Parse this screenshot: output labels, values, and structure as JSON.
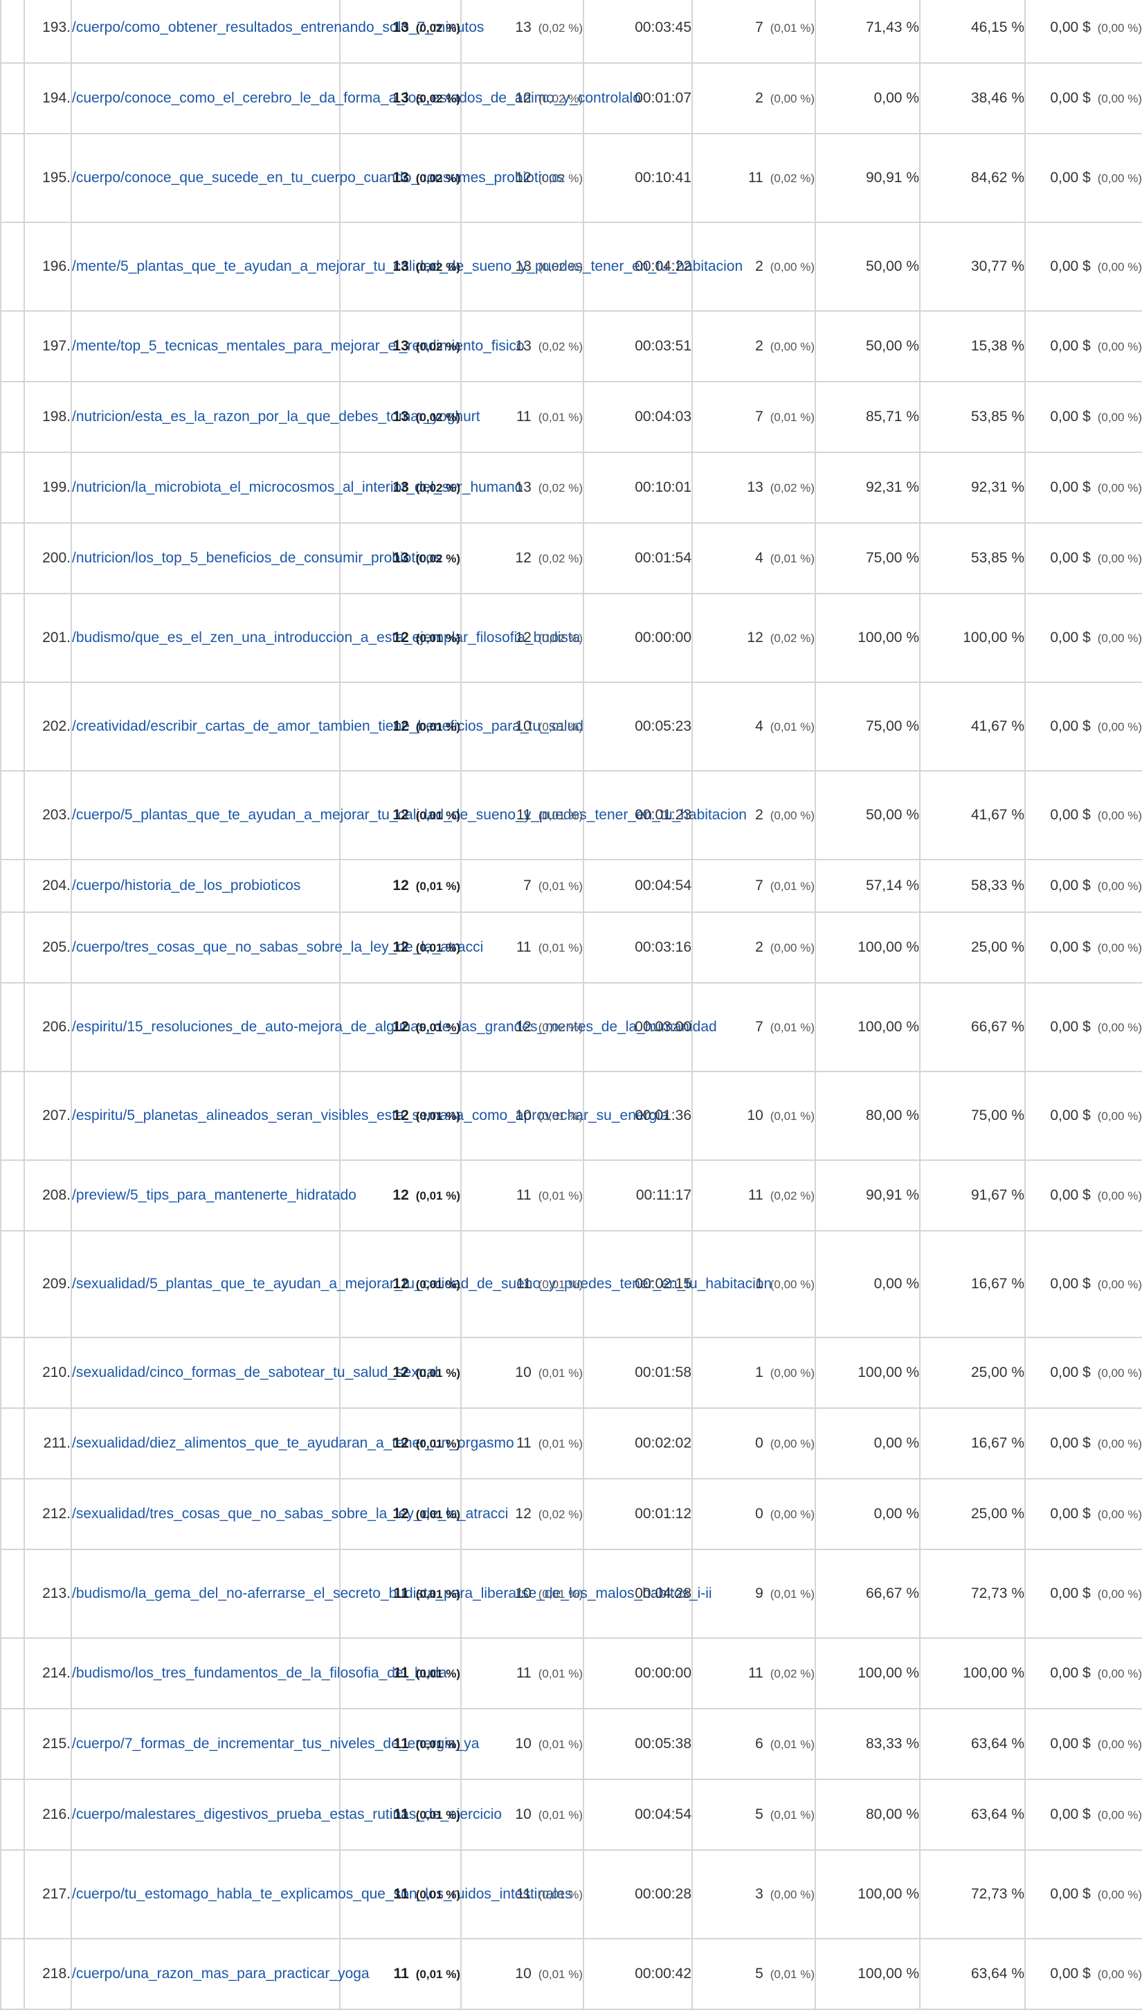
{
  "rows": [
    {
      "idx": "193.",
      "page": "/cuerpo/como_obtener_resultados_entrenando_solo_7_minutos",
      "views": "13",
      "views_pct": "(0,02 %)",
      "unique": "13",
      "unique_pct": "(0,02 %)",
      "time": "00:03:45",
      "entrances": "7",
      "entrances_pct": "(0,01 %)",
      "bounce": "71,43 %",
      "exit": "46,15 %",
      "value": "0,00 $",
      "value_pct": "(0,00 %)"
    },
    {
      "idx": "194.",
      "page": "/cuerpo/conoce_como_el_cerebro_le_da_forma_a_los_estados_de_animo_y_controlalo",
      "views": "13",
      "views_pct": "(0,02 %)",
      "unique": "12",
      "unique_pct": "(0,02 %)",
      "time": "00:01:07",
      "entrances": "2",
      "entrances_pct": "(0,00 %)",
      "bounce": "0,00 %",
      "exit": "38,46 %",
      "value": "0,00 $",
      "value_pct": "(0,00 %)"
    },
    {
      "idx": "195.",
      "page": "/cuerpo/conoce_que_sucede_en_tu_cuerpo_cuando_consumes_probioticos",
      "views": "13",
      "views_pct": "(0,02 %)",
      "unique": "12",
      "unique_pct": "(0,02 %)",
      "time": "00:10:41",
      "entrances": "11",
      "entrances_pct": "(0,02 %)",
      "bounce": "90,91 %",
      "exit": "84,62 %",
      "value": "0,00 $",
      "value_pct": "(0,00 %)"
    },
    {
      "idx": "196.",
      "page": "/mente/5_plantas_que_te_ayudan_a_mejorar_tu_calidad_de_sueno_y_puedes_tener_en_tu_habitacion",
      "views": "13",
      "views_pct": "(0,02 %)",
      "unique": "13",
      "unique_pct": "(0,02 %)",
      "time": "00:04:22",
      "entrances": "2",
      "entrances_pct": "(0,00 %)",
      "bounce": "50,00 %",
      "exit": "30,77 %",
      "value": "0,00 $",
      "value_pct": "(0,00 %)"
    },
    {
      "idx": "197.",
      "page": "/mente/top_5_tecnicas_mentales_para_mejorar_el_rendimiento_fisico",
      "views": "13",
      "views_pct": "(0,02 %)",
      "unique": "13",
      "unique_pct": "(0,02 %)",
      "time": "00:03:51",
      "entrances": "2",
      "entrances_pct": "(0,00 %)",
      "bounce": "50,00 %",
      "exit": "15,38 %",
      "value": "0,00 $",
      "value_pct": "(0,00 %)"
    },
    {
      "idx": "198.",
      "page": "/nutricion/esta_es_la_razon_por_la_que_debes_tomar_yoghurt",
      "views": "13",
      "views_pct": "(0,02 %)",
      "unique": "11",
      "unique_pct": "(0,01 %)",
      "time": "00:04:03",
      "entrances": "7",
      "entrances_pct": "(0,01 %)",
      "bounce": "85,71 %",
      "exit": "53,85 %",
      "value": "0,00 $",
      "value_pct": "(0,00 %)"
    },
    {
      "idx": "199.",
      "page": "/nutricion/la_microbiota_el_microcosmos_al_interior_del_ser_humano",
      "views": "13",
      "views_pct": "(0,02 %)",
      "unique": "13",
      "unique_pct": "(0,02 %)",
      "time": "00:10:01",
      "entrances": "13",
      "entrances_pct": "(0,02 %)",
      "bounce": "92,31 %",
      "exit": "92,31 %",
      "value": "0,00 $",
      "value_pct": "(0,00 %)"
    },
    {
      "idx": "200.",
      "page": "/nutricion/los_top_5_beneficios_de_consumir_probioticos",
      "views": "13",
      "views_pct": "(0,02 %)",
      "unique": "12",
      "unique_pct": "(0,02 %)",
      "time": "00:01:54",
      "entrances": "4",
      "entrances_pct": "(0,01 %)",
      "bounce": "75,00 %",
      "exit": "53,85 %",
      "value": "0,00 $",
      "value_pct": "(0,00 %)"
    },
    {
      "idx": "201.",
      "page": "/budismo/que_es_el_zen_una_introduccion_a_esta_ejemplar_filosofia_budista",
      "views": "12",
      "views_pct": "(0,01 %)",
      "unique": "12",
      "unique_pct": "(0,02 %)",
      "time": "00:00:00",
      "entrances": "12",
      "entrances_pct": "(0,02 %)",
      "bounce": "100,00 %",
      "exit": "100,00 %",
      "value": "0,00 $",
      "value_pct": "(0,00 %)"
    },
    {
      "idx": "202.",
      "page": "/creatividad/escribir_cartas_de_amor_tambien_tiene_beneficios_para_tu_salud",
      "views": "12",
      "views_pct": "(0,01 %)",
      "unique": "10",
      "unique_pct": "(0,01 %)",
      "time": "00:05:23",
      "entrances": "4",
      "entrances_pct": "(0,01 %)",
      "bounce": "75,00 %",
      "exit": "41,67 %",
      "value": "0,00 $",
      "value_pct": "(0,00 %)"
    },
    {
      "idx": "203.",
      "page": "/cuerpo/5_plantas_que_te_ayudan_a_mejorar_tu_calidad_de_sueno_y_puedes_tener_en_tu_habitacion",
      "views": "12",
      "views_pct": "(0,01 %)",
      "unique": "11",
      "unique_pct": "(0,01 %)",
      "time": "00:01:23",
      "entrances": "2",
      "entrances_pct": "(0,00 %)",
      "bounce": "50,00 %",
      "exit": "41,67 %",
      "value": "0,00 $",
      "value_pct": "(0,00 %)"
    },
    {
      "idx": "204.",
      "page": "/cuerpo/historia_de_los_probioticos",
      "views": "12",
      "views_pct": "(0,01 %)",
      "unique": "7",
      "unique_pct": "(0,01 %)",
      "time": "00:04:54",
      "entrances": "7",
      "entrances_pct": "(0,01 %)",
      "bounce": "57,14 %",
      "exit": "58,33 %",
      "value": "0,00 $",
      "value_pct": "(0,00 %)"
    },
    {
      "idx": "205.",
      "page": "/cuerpo/tres_cosas_que_no_sabas_sobre_la_ley_de_la_atracci",
      "views": "12",
      "views_pct": "(0,01 %)",
      "unique": "11",
      "unique_pct": "(0,01 %)",
      "time": "00:03:16",
      "entrances": "2",
      "entrances_pct": "(0,00 %)",
      "bounce": "100,00 %",
      "exit": "25,00 %",
      "value": "0,00 $",
      "value_pct": "(0,00 %)"
    },
    {
      "idx": "206.",
      "page": "/espiritu/15_resoluciones_de_auto-mejora_de_algunas_de_las_grandes_mentes_de_la_humanidad",
      "views": "12",
      "views_pct": "(0,01 %)",
      "unique": "12",
      "unique_pct": "(0,02 %)",
      "time": "00:03:00",
      "entrances": "7",
      "entrances_pct": "(0,01 %)",
      "bounce": "100,00 %",
      "exit": "66,67 %",
      "value": "0,00 $",
      "value_pct": "(0,00 %)"
    },
    {
      "idx": "207.",
      "page": "/espiritu/5_planetas_alineados_seran_visibles_esta_semana_como_aprovechar_su_energia",
      "views": "12",
      "views_pct": "(0,01 %)",
      "unique": "10",
      "unique_pct": "(0,01 %)",
      "time": "00:01:36",
      "entrances": "10",
      "entrances_pct": "(0,01 %)",
      "bounce": "80,00 %",
      "exit": "75,00 %",
      "value": "0,00 $",
      "value_pct": "(0,00 %)"
    },
    {
      "idx": "208.",
      "page": "/preview/5_tips_para_mantenerte_hidratado",
      "views": "12",
      "views_pct": "(0,01 %)",
      "unique": "11",
      "unique_pct": "(0,01 %)",
      "time": "00:11:17",
      "entrances": "11",
      "entrances_pct": "(0,02 %)",
      "bounce": "90,91 %",
      "exit": "91,67 %",
      "value": "0,00 $",
      "value_pct": "(0,00 %)"
    },
    {
      "idx": "209.",
      "page": "/sexualidad/5_plantas_que_te_ayudan_a_mejorar_tu_calidad_de_sueno_y_puedes_tener_en_tu_habitacion",
      "views": "12",
      "views_pct": "(0,01 %)",
      "unique": "11",
      "unique_pct": "(0,01 %)",
      "time": "00:02:15",
      "entrances": "1",
      "entrances_pct": "(0,00 %)",
      "bounce": "0,00 %",
      "exit": "16,67 %",
      "value": "0,00 $",
      "value_pct": "(0,00 %)"
    },
    {
      "idx": "210.",
      "page": "/sexualidad/cinco_formas_de_sabotear_tu_salud_sexual",
      "views": "12",
      "views_pct": "(0,01 %)",
      "unique": "10",
      "unique_pct": "(0,01 %)",
      "time": "00:01:58",
      "entrances": "1",
      "entrances_pct": "(0,00 %)",
      "bounce": "100,00 %",
      "exit": "25,00 %",
      "value": "0,00 $",
      "value_pct": "(0,00 %)"
    },
    {
      "idx": "211.",
      "page": "/sexualidad/diez_alimentos_que_te_ayudaran_a_tener_un_orgasmo",
      "views": "12",
      "views_pct": "(0,01 %)",
      "unique": "11",
      "unique_pct": "(0,01 %)",
      "time": "00:02:02",
      "entrances": "0",
      "entrances_pct": "(0,00 %)",
      "bounce": "0,00 %",
      "exit": "16,67 %",
      "value": "0,00 $",
      "value_pct": "(0,00 %)"
    },
    {
      "idx": "212.",
      "page": "/sexualidad/tres_cosas_que_no_sabas_sobre_la_ley_de_la_atracci",
      "views": "12",
      "views_pct": "(0,01 %)",
      "unique": "12",
      "unique_pct": "(0,02 %)",
      "time": "00:01:12",
      "entrances": "0",
      "entrances_pct": "(0,00 %)",
      "bounce": "0,00 %",
      "exit": "25,00 %",
      "value": "0,00 $",
      "value_pct": "(0,00 %)"
    },
    {
      "idx": "213.",
      "page": "/budismo/la_gema_del_no-aferrarse_el_secreto_budista_para_liberarse_de_los_malos_habitos_i-ii",
      "views": "11",
      "views_pct": "(0,01 %)",
      "unique": "10",
      "unique_pct": "(0,01 %)",
      "time": "00:04:28",
      "entrances": "9",
      "entrances_pct": "(0,01 %)",
      "bounce": "66,67 %",
      "exit": "72,73 %",
      "value": "0,00 $",
      "value_pct": "(0,00 %)"
    },
    {
      "idx": "214.",
      "page": "/budismo/los_tres_fundamentos_de_la_filosofia_del_buda",
      "views": "11",
      "views_pct": "(0,01 %)",
      "unique": "11",
      "unique_pct": "(0,01 %)",
      "time": "00:00:00",
      "entrances": "11",
      "entrances_pct": "(0,02 %)",
      "bounce": "100,00 %",
      "exit": "100,00 %",
      "value": "0,00 $",
      "value_pct": "(0,00 %)"
    },
    {
      "idx": "215.",
      "page": "/cuerpo/7_formas_de_incrementar_tus_niveles_de_energia_ya",
      "views": "11",
      "views_pct": "(0,01 %)",
      "unique": "10",
      "unique_pct": "(0,01 %)",
      "time": "00:05:38",
      "entrances": "6",
      "entrances_pct": "(0,01 %)",
      "bounce": "83,33 %",
      "exit": "63,64 %",
      "value": "0,00 $",
      "value_pct": "(0,00 %)"
    },
    {
      "idx": "216.",
      "page": "/cuerpo/malestares_digestivos_prueba_estas_rutinas_de_ejercicio",
      "views": "11",
      "views_pct": "(0,01 %)",
      "unique": "10",
      "unique_pct": "(0,01 %)",
      "time": "00:04:54",
      "entrances": "5",
      "entrances_pct": "(0,01 %)",
      "bounce": "80,00 %",
      "exit": "63,64 %",
      "value": "0,00 $",
      "value_pct": "(0,00 %)"
    },
    {
      "idx": "217.",
      "page": "/cuerpo/tu_estomago_habla_te_explicamos_que_son_los_ruidos_intestinales",
      "views": "11",
      "views_pct": "(0,01 %)",
      "unique": "11",
      "unique_pct": "(0,01 %)",
      "time": "00:00:28",
      "entrances": "3",
      "entrances_pct": "(0,00 %)",
      "bounce": "100,00 %",
      "exit": "72,73 %",
      "value": "0,00 $",
      "value_pct": "(0,00 %)"
    },
    {
      "idx": "218.",
      "page": "/cuerpo/una_razon_mas_para_practicar_yoga",
      "views": "11",
      "views_pct": "(0,01 %)",
      "unique": "10",
      "unique_pct": "(0,01 %)",
      "time": "00:00:42",
      "entrances": "5",
      "entrances_pct": "(0,01 %)",
      "bounce": "100,00 %",
      "exit": "63,64 %",
      "value": "0,00 $",
      "value_pct": "(0,00 %)"
    }
  ]
}
